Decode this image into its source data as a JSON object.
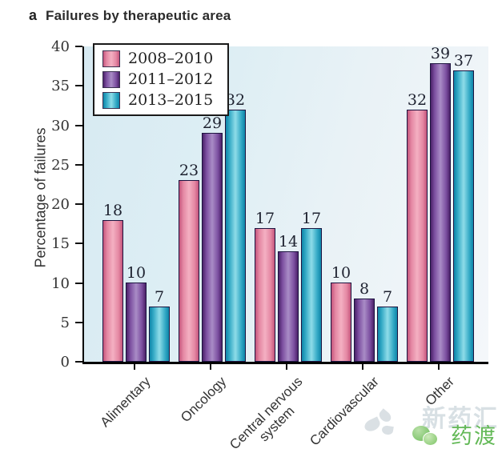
{
  "figure": {
    "panel_label": "a",
    "title": "Failures by therapeutic area"
  },
  "chart_data": {
    "type": "bar",
    "title": "Failures by therapeutic area",
    "categories": [
      "Alimentary",
      "Oncology",
      "Central nervous system",
      "Cardiovascular",
      "Other"
    ],
    "series": [
      {
        "name": "2008–2010",
        "values": [
          18,
          23,
          17,
          10,
          32
        ],
        "color_dark": "#c4557c",
        "color_mid": "#e487a3",
        "color_light": "#f4b0c2"
      },
      {
        "name": "2011–2012",
        "values": [
          10,
          29,
          14,
          8,
          39
        ],
        "color_dark": "#4a2168",
        "color_mid": "#7c4fa0",
        "color_light": "#a98cc6"
      },
      {
        "name": "2013–2015",
        "values": [
          7,
          32,
          17,
          7,
          37
        ],
        "color_dark": "#0e85a8",
        "color_mid": "#35aac6",
        "color_light": "#8edce8"
      }
    ],
    "ylabel": "Percentage of failures",
    "xlabel": "",
    "ylim": [
      0,
      40
    ],
    "yticks": [
      0,
      5,
      10,
      15,
      20,
      25,
      30,
      35,
      40
    ],
    "grid": false,
    "bar_labels": true,
    "legend_position": "top-left",
    "plot_bg_colors": [
      "#d7eaf2",
      "#f4f7fa"
    ],
    "bar_outline_color": "#1d1440"
  },
  "watermark": {
    "faint_text": "新药汇",
    "green_text": "药渡"
  }
}
